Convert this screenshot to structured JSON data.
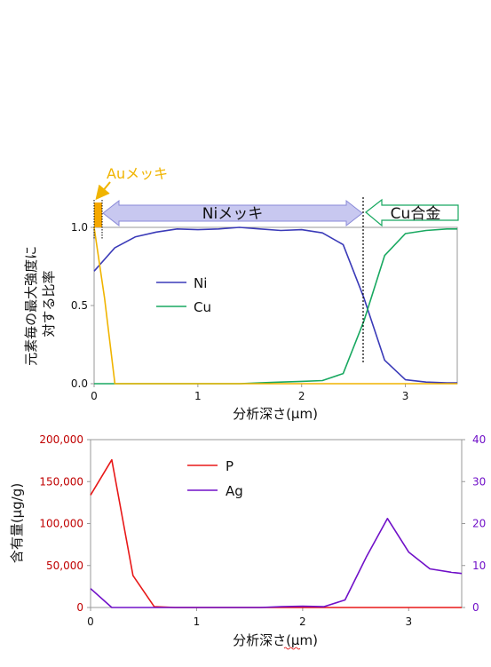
{
  "chart_data": [
    {
      "type": "line",
      "xlabel": "分析深さ(μm)",
      "ylabel": "元素毎の最大強度に対する比率",
      "xlim": [
        0,
        3.5
      ],
      "ylim": [
        0,
        1.0
      ],
      "xticks": [
        "0",
        "1",
        "2",
        "3"
      ],
      "yticks": [
        "0.0",
        "0.5",
        "1.0"
      ],
      "grid": false,
      "legend_position": "center-left",
      "series": [
        {
          "name": "Ni",
          "color": "#3a3ab8",
          "x": [
            0,
            0.2,
            0.4,
            0.6,
            0.8,
            1.0,
            1.2,
            1.4,
            1.6,
            1.8,
            2.0,
            2.2,
            2.4,
            2.6,
            2.8,
            3.0,
            3.2,
            3.4,
            3.5
          ],
          "y": [
            0.72,
            0.87,
            0.94,
            0.97,
            0.99,
            0.985,
            0.99,
            1.0,
            0.99,
            0.98,
            0.985,
            0.965,
            0.89,
            0.55,
            0.15,
            0.025,
            0.01,
            0.005,
            0.005
          ]
        },
        {
          "name": "Cu",
          "color": "#18a860",
          "x": [
            0,
            0.2,
            0.4,
            0.6,
            0.8,
            1.0,
            1.2,
            1.4,
            1.6,
            1.8,
            2.0,
            2.2,
            2.4,
            2.6,
            2.8,
            3.0,
            3.2,
            3.4,
            3.5
          ],
          "y": [
            0,
            0,
            0,
            0,
            0,
            0,
            0,
            0,
            0.005,
            0.01,
            0.015,
            0.02,
            0.065,
            0.4,
            0.82,
            0.96,
            0.98,
            0.99,
            0.99
          ]
        },
        {
          "name": "",
          "color": "#f0b400",
          "x": [
            0,
            0.1,
            0.2,
            0.4,
            1.0,
            2.0,
            3.0,
            3.5
          ],
          "y": [
            1.0,
            0.55,
            0.0,
            0.0,
            0.0,
            0.0,
            0.0,
            0.0
          ]
        }
      ],
      "annotations": [
        {
          "text": "Auメッキ",
          "color": "#f0b400"
        },
        {
          "text": "Niメッキ",
          "color": "#b8b8e8"
        },
        {
          "text": "Cu合金",
          "color": "#18a860"
        }
      ]
    },
    {
      "type": "line",
      "xlabel": "分析深さ(μm)",
      "ylabel": "含有量(μg/g)",
      "xlim": [
        0,
        3.5
      ],
      "ylim": [
        0,
        200000
      ],
      "y2lim": [
        0,
        40
      ],
      "xticks": [
        "0",
        "1",
        "2",
        "3"
      ],
      "yticks": [
        "0",
        "50,000",
        "100,000",
        "150,000",
        "200,000"
      ],
      "y2ticks": [
        "0",
        "10",
        "20",
        "30",
        "40"
      ],
      "grid": false,
      "legend_position": "top-center",
      "series": [
        {
          "name": "P",
          "axis": "left",
          "color": "#e81818",
          "x": [
            0,
            0.2,
            0.4,
            0.6,
            0.8,
            1.0,
            1.5,
            2.0,
            2.5,
            3.0,
            3.5
          ],
          "y": [
            134000,
            176000,
            38000,
            1000,
            0,
            0,
            0,
            0,
            0,
            0,
            0
          ]
        },
        {
          "name": "Ag",
          "axis": "right",
          "color": "#7010c8",
          "x": [
            0,
            0.2,
            0.4,
            0.6,
            0.8,
            1.0,
            1.2,
            1.4,
            1.6,
            1.8,
            2.0,
            2.2,
            2.4,
            2.6,
            2.8,
            3.0,
            3.2,
            3.4,
            3.5
          ],
          "y": [
            4.5,
            0,
            0,
            0,
            0,
            0,
            0,
            0,
            0,
            0.2,
            0.3,
            0.2,
            1.8,
            12,
            21.2,
            13.2,
            9.2,
            8.4,
            8.1
          ]
        }
      ]
    }
  ]
}
